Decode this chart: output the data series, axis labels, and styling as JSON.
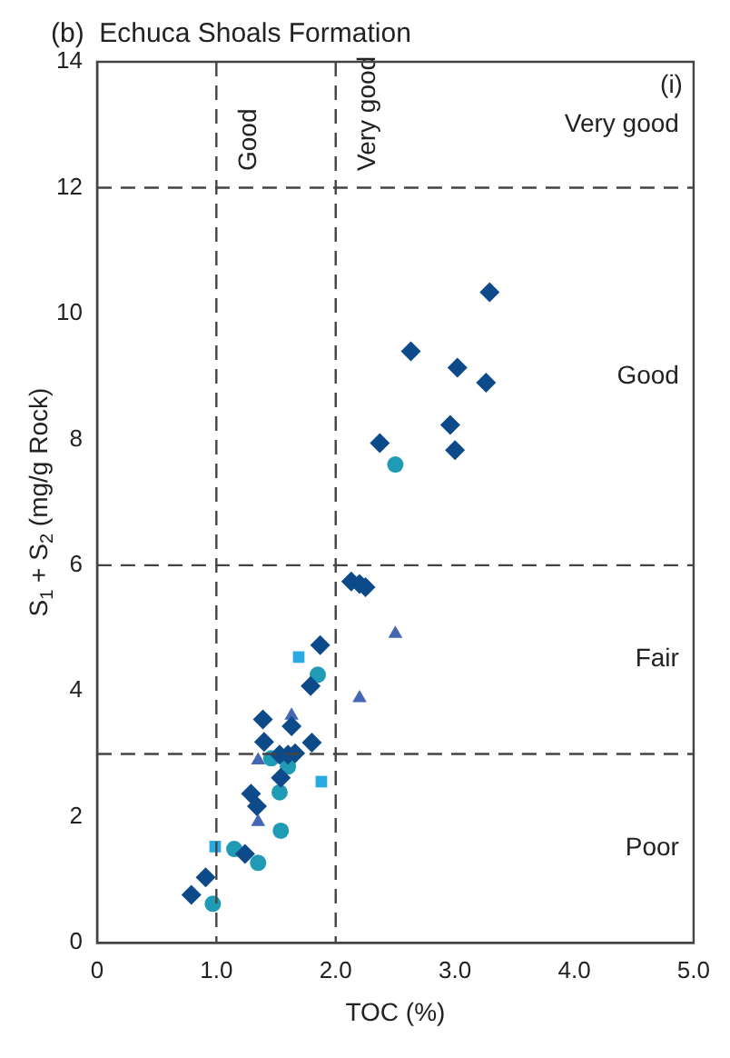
{
  "chart_data": {
    "type": "scatter",
    "title": "(b)  Echuca Shoals Formation",
    "xlabel": "TOC (%)",
    "ylabel": "S$_{1}$ + S$_{2}$ (mg/g Rock)",
    "xlim": [
      0,
      5
    ],
    "ylim": [
      0,
      14
    ],
    "xticks": [
      0,
      {
        "value": 1,
        "label": "1.0"
      },
      {
        "value": 2,
        "label": "2.0"
      },
      {
        "value": 3,
        "label": "3.0"
      },
      {
        "value": 4,
        "label": "4.0"
      },
      {
        "value": 5,
        "label": "5.0"
      }
    ],
    "yticks": [
      0,
      2,
      4,
      6,
      8,
      10,
      12,
      14
    ],
    "grid": false,
    "legend": false,
    "series": [
      {
        "color": "#0d4a8a",
        "marker": "diamond",
        "x": [
          3.29,
          2.63,
          3.02,
          3.26,
          2.96,
          2.37,
          3.0,
          2.13,
          2.2,
          2.25,
          1.87,
          1.79,
          1.39,
          1.63,
          1.4,
          1.8,
          1.53,
          1.6,
          1.66,
          1.54,
          1.29,
          1.34,
          1.24,
          0.91,
          0.79
        ],
        "values": [
          10.34,
          9.4,
          9.14,
          8.9,
          8.23,
          7.94,
          7.83,
          5.74,
          5.7,
          5.65,
          4.73,
          4.08,
          3.55,
          3.44,
          3.19,
          3.18,
          2.99,
          2.99,
          3.01,
          2.62,
          2.37,
          2.17,
          1.41,
          1.04,
          0.76
        ]
      },
      {
        "color": "#1f9bb5",
        "marker": "circle",
        "x": [
          2.5,
          0.97,
          1.15,
          1.35,
          1.54,
          1.53,
          1.6,
          1.46,
          1.85
        ],
        "values": [
          7.6,
          0.62,
          1.49,
          1.27,
          1.78,
          2.39,
          2.8,
          2.93,
          4.26
        ]
      },
      {
        "color": "#2aaae2",
        "marker": "square",
        "x": [
          0.99,
          1.69,
          1.88
        ],
        "values": [
          1.53,
          4.54,
          2.56
        ]
      },
      {
        "color": "#4565b5",
        "marker": "triangle",
        "x": [
          2.5,
          2.2,
          1.63,
          1.35,
          1.35
        ],
        "values": [
          4.91,
          3.89,
          3.61,
          2.9,
          1.92
        ]
      }
    ],
    "ref_lines": [
      {
        "axis": "y",
        "value": 3,
        "line_style": "dashed"
      },
      {
        "axis": "y",
        "value": 6,
        "line_style": "dashed"
      },
      {
        "axis": "y",
        "value": 12,
        "line_style": "dashed"
      },
      {
        "axis": "x",
        "value": 1,
        "label": "Good",
        "line_style": "dashed"
      },
      {
        "axis": "x",
        "value": 2,
        "label": "Very good",
        "line_style": "dashed"
      }
    ],
    "annotations": [
      "(i)",
      "Very good",
      "Good",
      "Fair",
      "Poor"
    ]
  }
}
